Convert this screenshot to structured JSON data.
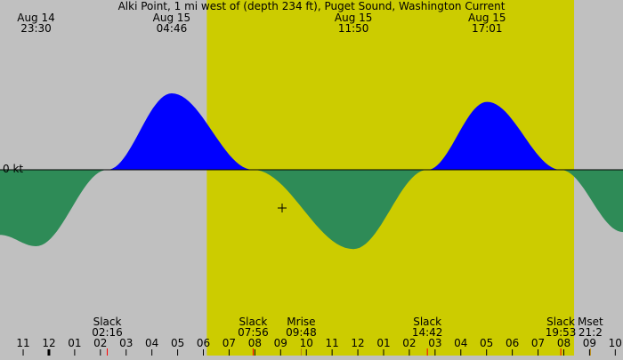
{
  "chart_data": {
    "type": "area",
    "title": "Alki Point, 1 mi west of (depth 234 ft), Puget Sound, Washington Current",
    "ylabel": "0 kt",
    "ylim": [
      -2.2,
      2.2
    ],
    "x_unit": "hours since Aug 14 00:00 (plot time)",
    "colors": {
      "background": "#c0c0c0",
      "daylight": "#cccc00",
      "flood": "#0000ff",
      "ebb": "#2e8b57",
      "slack_tick": "#ff0000",
      "moon_tick": "#b8860b",
      "axis": "#000000"
    },
    "daylight_band": {
      "start": "Aug 15 06:08",
      "end": "Aug 15 20:24"
    },
    "extrema_labels": [
      {
        "date": "Aug 14",
        "time": "23:30"
      },
      {
        "date": "Aug 15",
        "time": "04:46"
      },
      {
        "date": "Aug 15",
        "time": "11:50"
      },
      {
        "date": "Aug 15",
        "time": "17:01"
      }
    ],
    "events": [
      {
        "label": "Slack",
        "time": "02:16"
      },
      {
        "label": "Slack",
        "time": "07:56"
      },
      {
        "label": "Mrise",
        "time": "09:48"
      },
      {
        "label": "Slack",
        "time": "14:42"
      },
      {
        "label": "Slack",
        "time": "19:53"
      },
      {
        "label": "Mset",
        "time": "21:2"
      }
    ],
    "x_tick_labels": [
      "11",
      "12",
      "01",
      "02",
      "03",
      "04",
      "05",
      "06",
      "07",
      "08",
      "09",
      "10",
      "11",
      "12",
      "01",
      "02",
      "03",
      "04",
      "05",
      "06",
      "07",
      "08",
      "09",
      "10"
    ],
    "series": [
      {
        "kind": "current",
        "points": [
          [
            22.1,
            -1.15
          ],
          [
            23.5,
            -1.35
          ],
          [
            26.27,
            0.0
          ],
          [
            28.77,
            1.35
          ],
          [
            31.93,
            0.0
          ],
          [
            35.83,
            -1.4
          ],
          [
            38.7,
            0.0
          ],
          [
            41.02,
            1.2
          ],
          [
            43.88,
            0.0
          ],
          [
            46.3,
            -1.1
          ]
        ]
      }
    ]
  }
}
